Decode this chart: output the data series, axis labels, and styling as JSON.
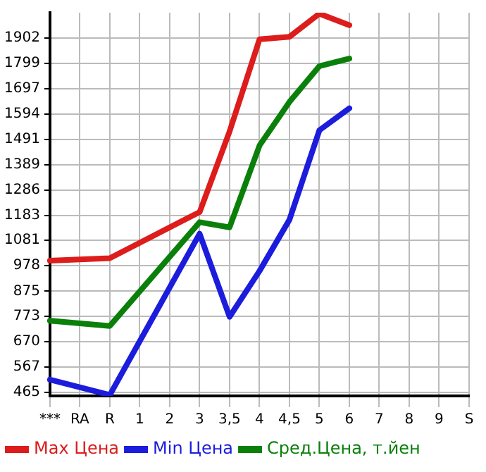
{
  "chart_data": {
    "type": "line",
    "categories": [
      "***",
      "RA",
      "R",
      "1",
      "2",
      "3",
      "3,5",
      "4",
      "4,5",
      "5",
      "6",
      "7",
      "8",
      "9",
      "S"
    ],
    "series": [
      {
        "name": "Max Цена",
        "color": "#dd1c1c",
        "values": [
          999,
          null,
          1009,
          null,
          null,
          1196,
          1523,
          1897,
          1907,
          2001,
          1954,
          null,
          null,
          null,
          null
        ]
      },
      {
        "name": "Min Цена",
        "color": "#1c1cdd",
        "values": [
          516,
          null,
          454,
          null,
          null,
          1108,
          771,
          957,
          1165,
          1528,
          1617,
          null,
          null,
          null,
          null
        ]
      },
      {
        "name": "Сред.Цена, т.йен",
        "color": "#0a800a",
        "values": [
          755,
          null,
          734,
          null,
          null,
          1155,
          1134,
          1466,
          1643,
          1788,
          1819,
          null,
          null,
          null,
          null
        ]
      }
    ],
    "ylim": [
      450,
      2005
    ],
    "yticks": [
      465,
      567,
      670,
      773,
      875,
      978,
      1081,
      1183,
      1286,
      1389,
      1491,
      1594,
      1697,
      1799,
      1902
    ],
    "grid": true,
    "legend": "bottom",
    "marker": "none",
    "line_style": "solid"
  }
}
